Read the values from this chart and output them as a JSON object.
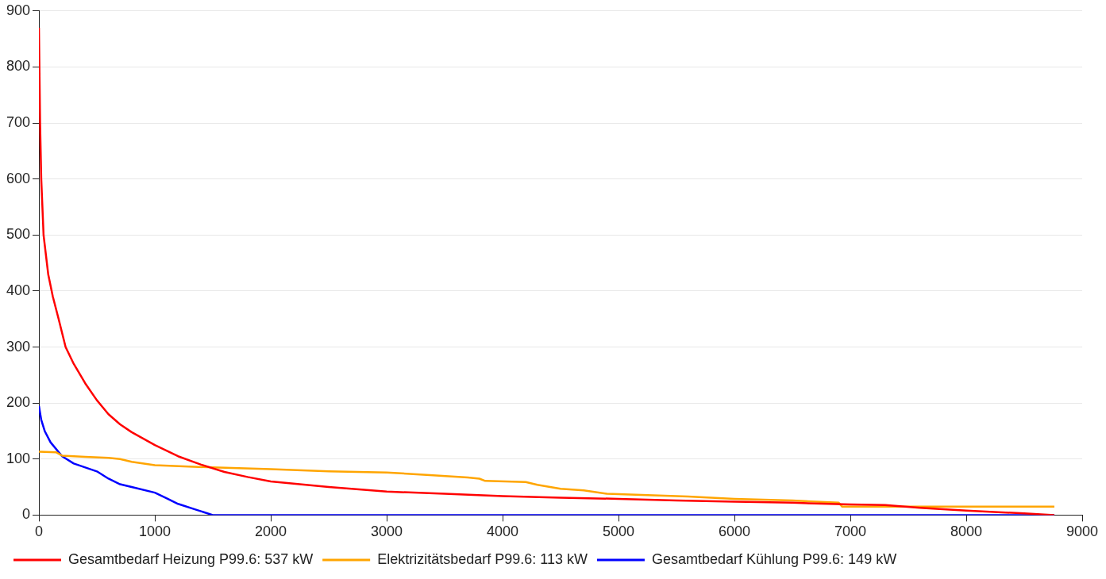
{
  "chart_data": {
    "type": "line",
    "xlim": [
      0,
      9000
    ],
    "xticks": [
      0,
      1000,
      2000,
      3000,
      4000,
      5000,
      6000,
      7000,
      8000,
      9000
    ],
    "ylim": [
      0,
      900
    ],
    "yticks": [
      0,
      100,
      200,
      300,
      400,
      500,
      600,
      700,
      800,
      900
    ],
    "grid": "y",
    "legend": "bottom",
    "marker": "none",
    "line_style": "solid",
    "series": [
      {
        "name": "Gesamtbedarf Heizung P99.6: 537 kW",
        "color": "#ff0000",
        "x": [
          0,
          10,
          20,
          40,
          80,
          120,
          170,
          230,
          300,
          400,
          500,
          600,
          700,
          800,
          1000,
          1200,
          1400,
          1600,
          1800,
          2000,
          2500,
          3000,
          3500,
          4000,
          4500,
          5000,
          5500,
          6000,
          6500,
          7000,
          7300,
          7600,
          8000,
          8500,
          8760
        ],
        "values": [
          870,
          700,
          600,
          500,
          430,
          390,
          350,
          300,
          270,
          235,
          205,
          180,
          162,
          148,
          125,
          105,
          90,
          77,
          68,
          60,
          50,
          42,
          38,
          34,
          31,
          29,
          26,
          24,
          22,
          19,
          18,
          13,
          8,
          3,
          0
        ]
      },
      {
        "name": "Elektrizitätsbedarf P99.6: 113 kW",
        "color": "#ffa500",
        "x": [
          0,
          150,
          200,
          400,
          600,
          700,
          800,
          1000,
          1500,
          2000,
          2500,
          3000,
          3400,
          3700,
          3800,
          3850,
          4200,
          4300,
          4500,
          4700,
          4900,
          5200,
          5600,
          6000,
          6500,
          6900,
          6930,
          7500,
          8760
        ],
        "values": [
          113,
          112,
          106,
          104,
          102,
          100,
          95,
          89,
          85,
          82,
          78,
          76,
          71,
          67,
          65,
          61,
          59,
          54,
          47,
          44,
          38,
          36,
          33,
          29,
          26,
          22,
          15,
          15,
          15
        ]
      },
      {
        "name": "Gesamtbedarf Kühlung P99.6: 149 kW",
        "color": "#0000ff",
        "x": [
          0,
          20,
          50,
          100,
          200,
          300,
          500,
          600,
          700,
          800,
          1000,
          1100,
          1200,
          1350,
          1500,
          8760
        ],
        "values": [
          195,
          170,
          150,
          130,
          105,
          92,
          78,
          65,
          55,
          50,
          40,
          30,
          20,
          10,
          0,
          0
        ]
      }
    ]
  }
}
